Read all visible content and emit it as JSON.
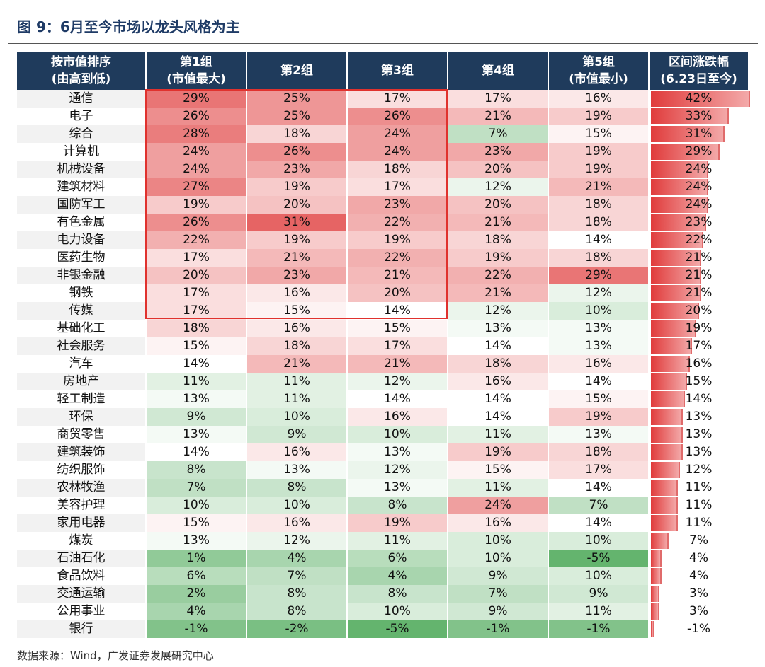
{
  "title": "图 9：6月至今市场以龙头风格为主",
  "source": "数据来源：Wind，广发证券发展研究中心",
  "headers": [
    [
      "按市值排序",
      "(由高到低)"
    ],
    [
      "第1组",
      "(市值最大)"
    ],
    [
      "第2组"
    ],
    [
      "第3组"
    ],
    [
      "第4组"
    ],
    [
      "第5组",
      "(市值最小)"
    ],
    [
      "区间涨跌幅",
      "(6.23日至今)"
    ]
  ],
  "colors": {
    "header_bg": "#1f3b5c",
    "high": "#e05b5b",
    "low": "#5fb36a",
    "highlight_border": "#e0322e"
  },
  "chart_data": {
    "type": "heatmap",
    "title": "图 9：6月至今市场以龙头风格为主",
    "columns": [
      "第1组(市值最大)",
      "第2组",
      "第3组",
      "第4组",
      "第5组(市值最小)",
      "区间涨跌幅(6.23日至今)"
    ],
    "rows": [
      {
        "industry": "通信",
        "groups": [
          29,
          25,
          17,
          17,
          16
        ],
        "change": 42
      },
      {
        "industry": "电子",
        "groups": [
          26,
          25,
          26,
          21,
          19
        ],
        "change": 33
      },
      {
        "industry": "综合",
        "groups": [
          28,
          18,
          24,
          7,
          15
        ],
        "change": 31
      },
      {
        "industry": "计算机",
        "groups": [
          24,
          26,
          24,
          23,
          19
        ],
        "change": 29
      },
      {
        "industry": "机械设备",
        "groups": [
          24,
          23,
          18,
          20,
          19
        ],
        "change": 24
      },
      {
        "industry": "建筑材料",
        "groups": [
          27,
          19,
          17,
          12,
          21
        ],
        "change": 24
      },
      {
        "industry": "国防军工",
        "groups": [
          19,
          20,
          23,
          20,
          18
        ],
        "change": 24
      },
      {
        "industry": "有色金属",
        "groups": [
          26,
          31,
          22,
          21,
          18
        ],
        "change": 23
      },
      {
        "industry": "电力设备",
        "groups": [
          22,
          19,
          19,
          18,
          14
        ],
        "change": 22
      },
      {
        "industry": "医药生物",
        "groups": [
          17,
          21,
          22,
          19,
          18
        ],
        "change": 21
      },
      {
        "industry": "非银金融",
        "groups": [
          20,
          23,
          21,
          22,
          29
        ],
        "change": 21
      },
      {
        "industry": "钢铁",
        "groups": [
          17,
          16,
          20,
          21,
          12
        ],
        "change": 21
      },
      {
        "industry": "传媒",
        "groups": [
          17,
          15,
          14,
          12,
          10
        ],
        "change": 20
      },
      {
        "industry": "基础化工",
        "groups": [
          18,
          16,
          15,
          13,
          13
        ],
        "change": 19
      },
      {
        "industry": "社会服务",
        "groups": [
          15,
          18,
          17,
          14,
          13
        ],
        "change": 17
      },
      {
        "industry": "汽车",
        "groups": [
          14,
          21,
          21,
          18,
          16
        ],
        "change": 16
      },
      {
        "industry": "房地产",
        "groups": [
          11,
          11,
          12,
          16,
          14
        ],
        "change": 15
      },
      {
        "industry": "轻工制造",
        "groups": [
          13,
          11,
          14,
          14,
          15
        ],
        "change": 14
      },
      {
        "industry": "环保",
        "groups": [
          9,
          10,
          16,
          14,
          19
        ],
        "change": 13
      },
      {
        "industry": "商贸零售",
        "groups": [
          13,
          9,
          10,
          11,
          13
        ],
        "change": 13
      },
      {
        "industry": "建筑装饰",
        "groups": [
          14,
          16,
          13,
          19,
          18
        ],
        "change": 13
      },
      {
        "industry": "纺织服饰",
        "groups": [
          8,
          13,
          12,
          15,
          17
        ],
        "change": 12
      },
      {
        "industry": "农林牧渔",
        "groups": [
          7,
          8,
          13,
          11,
          14
        ],
        "change": 11
      },
      {
        "industry": "美容护理",
        "groups": [
          10,
          10,
          8,
          24,
          7
        ],
        "change": 11
      },
      {
        "industry": "家用电器",
        "groups": [
          15,
          16,
          19,
          16,
          14
        ],
        "change": 11
      },
      {
        "industry": "煤炭",
        "groups": [
          13,
          12,
          11,
          10,
          10
        ],
        "change": 7
      },
      {
        "industry": "石油石化",
        "groups": [
          1,
          4,
          6,
          10,
          -5
        ],
        "change": 4
      },
      {
        "industry": "食品饮料",
        "groups": [
          6,
          7,
          4,
          9,
          10
        ],
        "change": 4
      },
      {
        "industry": "交通运输",
        "groups": [
          2,
          8,
          8,
          7,
          9
        ],
        "change": 3
      },
      {
        "industry": "公用事业",
        "groups": [
          4,
          8,
          10,
          9,
          11
        ],
        "change": 3
      },
      {
        "industry": "银行",
        "groups": [
          -1,
          -2,
          -5,
          -1,
          -1
        ],
        "change": -1
      }
    ],
    "value_format": "percent",
    "highlight": {
      "rows": [
        "通信",
        "传媒"
      ],
      "columns": [
        "第1组(市值最大)",
        "第3组"
      ]
    }
  }
}
